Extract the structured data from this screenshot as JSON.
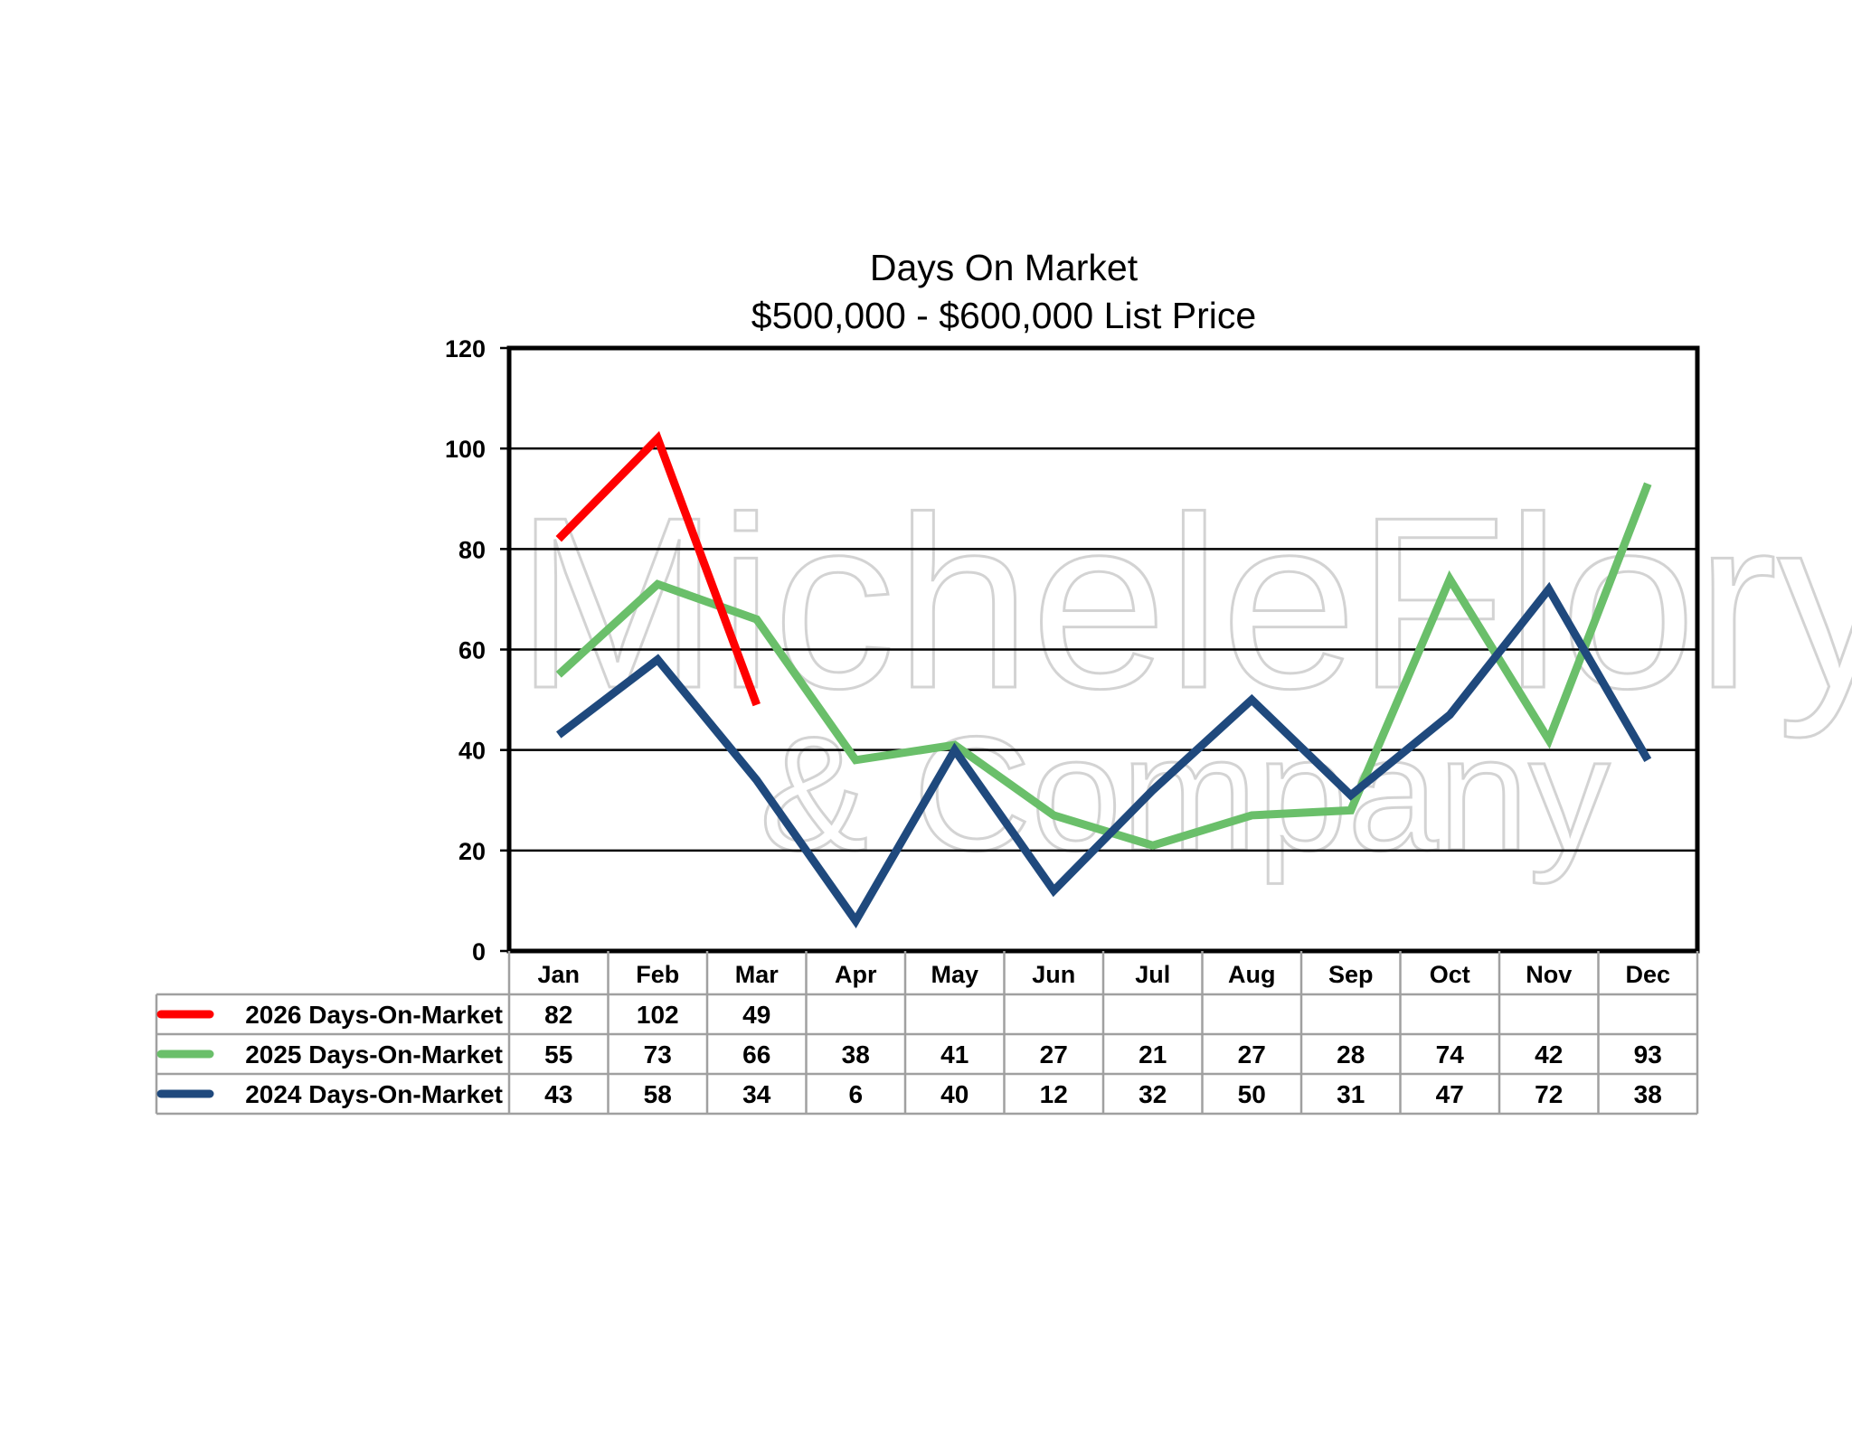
{
  "chart_data": {
    "type": "line",
    "title": "Days On Market",
    "subtitle": "$500,000 - $600,000 List Price",
    "categories": [
      "Jan",
      "Feb",
      "Mar",
      "Apr",
      "May",
      "Jun",
      "Jul",
      "Aug",
      "Sep",
      "Oct",
      "Nov",
      "Dec"
    ],
    "ylim": [
      0,
      120
    ],
    "yticks": [
      0,
      20,
      40,
      60,
      80,
      100,
      120
    ],
    "grid": true,
    "legend_placement": "data-table-below",
    "series": [
      {
        "name": "2026 Days-On-Market",
        "color": "#ff0000",
        "values": [
          82,
          102,
          49,
          null,
          null,
          null,
          null,
          null,
          null,
          null,
          null,
          null
        ]
      },
      {
        "name": "2025 Days-On-Market",
        "color": "#6abf6a",
        "values": [
          55,
          73,
          66,
          38,
          41,
          27,
          21,
          27,
          28,
          74,
          42,
          93
        ]
      },
      {
        "name": "2024 Days-On-Market",
        "color": "#1f497d",
        "values": [
          43,
          58,
          34,
          6,
          40,
          12,
          32,
          50,
          31,
          47,
          72,
          38
        ]
      }
    ]
  },
  "watermark": {
    "line1": "MicheleFlory",
    "line2": "& Company"
  }
}
